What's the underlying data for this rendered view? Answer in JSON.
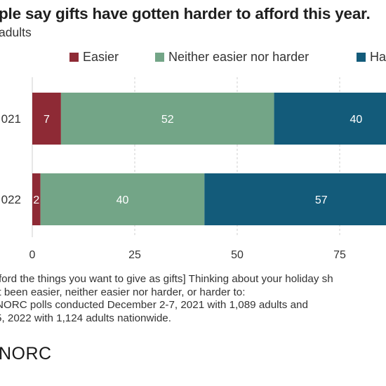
{
  "title": "ple say gifts have gotten harder to afford this year.",
  "subtitle": "adults",
  "colors": {
    "easier": "#8e2a35",
    "neither": "#73a587",
    "harder": "#135b7a",
    "grid": "#cfcfcf",
    "axis_text": "#333333",
    "bar_label": "#ffffff"
  },
  "chart_data": {
    "type": "bar",
    "orientation": "horizontal",
    "stacked": true,
    "categories": [
      "021",
      "022"
    ],
    "series": [
      {
        "name": "Easier",
        "values": [
          7,
          2
        ]
      },
      {
        "name": "Neither easier nor harder",
        "values": [
          52,
          40
        ]
      },
      {
        "name": "Ha",
        "values": [
          40,
          57
        ]
      }
    ],
    "xticks": [
      "0",
      "25",
      "50",
      "75"
    ],
    "xlim": [
      0,
      100
    ],
    "grid": true,
    "legend_position": "top"
  },
  "notes": [
    "fford the things you want to give as gifts] Thinking about your holiday sh",
    " it been easier, neither easier nor harder, or harder to:",
    "NORC polls conducted December 2-7, 2021 with 1,089 adults and",
    "5, 2022 with 1,124 adults nationwide."
  ],
  "brand": "NORC"
}
